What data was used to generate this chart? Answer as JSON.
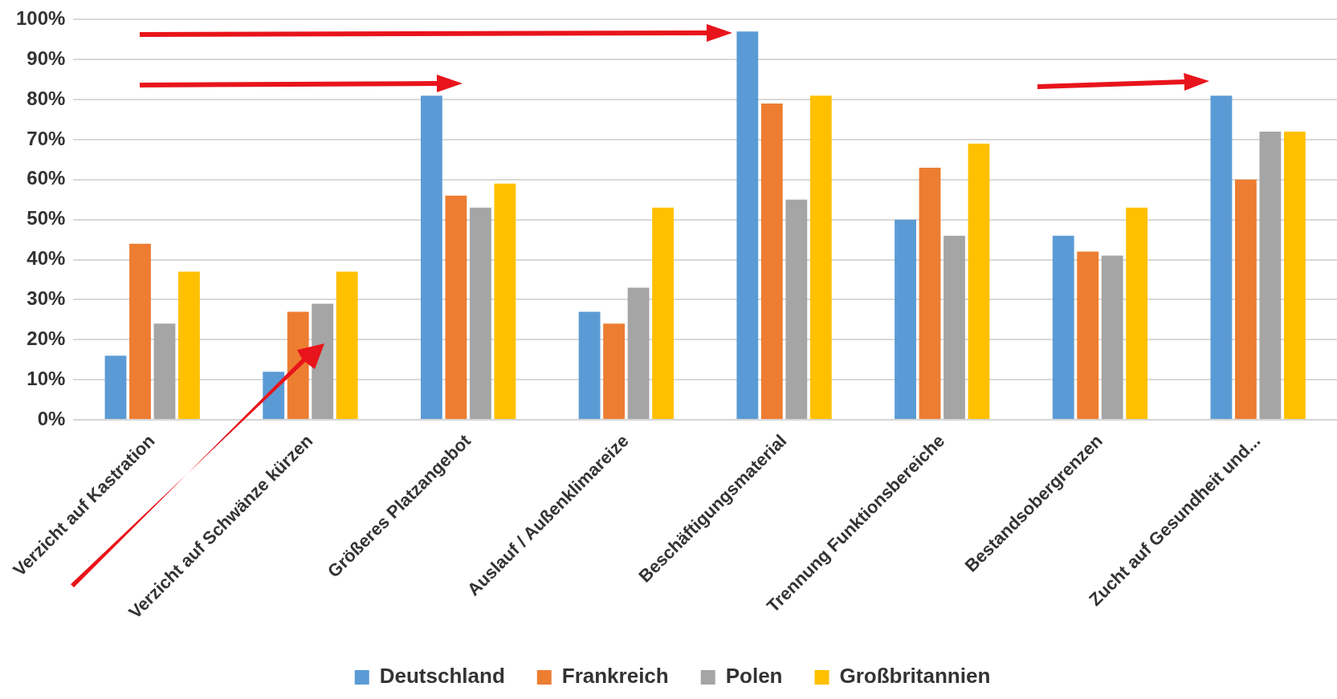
{
  "chart_data": {
    "type": "bar",
    "categories": [
      "Verzicht auf Kastration",
      "Verzicht auf Schwänze kürzen",
      "Größeres Platzangebot",
      "Auslauf / Außenklimareize",
      "Beschäftigungsmaterial",
      "Trennung Funktionsbereiche",
      "Bestandsobergrenzen",
      "Zucht auf Gesundheit und..."
    ],
    "series": [
      {
        "name": "Deutschland",
        "color": "#5b9bd5",
        "values": [
          16,
          12,
          81,
          27,
          97,
          50,
          46,
          81
        ]
      },
      {
        "name": "Frankreich",
        "color": "#ed7d31",
        "values": [
          44,
          27,
          56,
          24,
          79,
          63,
          42,
          60
        ]
      },
      {
        "name": "Polen",
        "color": "#a5a5a5",
        "values": [
          24,
          29,
          53,
          33,
          55,
          46,
          41,
          72
        ]
      },
      {
        "name": "Großbritannien",
        "color": "#ffc000",
        "values": [
          37,
          37,
          59,
          53,
          81,
          69,
          53,
          72
        ]
      }
    ],
    "ylim": [
      0,
      100
    ],
    "yticks": [
      {
        "value": 0,
        "label": "0%"
      },
      {
        "value": 10,
        "label": "10%"
      },
      {
        "value": 20,
        "label": "20%"
      },
      {
        "value": 30,
        "label": "30%"
      },
      {
        "value": 40,
        "label": "40%"
      },
      {
        "value": 50,
        "label": "50%"
      },
      {
        "value": 60,
        "label": "60%"
      },
      {
        "value": 70,
        "label": "70%"
      },
      {
        "value": 80,
        "label": "80%"
      },
      {
        "value": 90,
        "label": "90%"
      },
      {
        "value": 100,
        "label": "100%"
      }
    ],
    "grid": "y",
    "legend": "bottom"
  }
}
